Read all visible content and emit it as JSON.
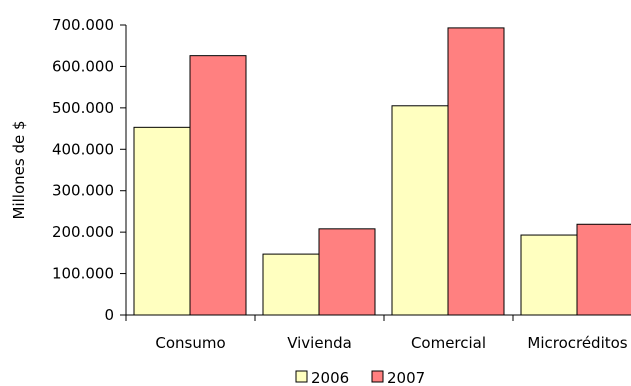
{
  "chart_data": {
    "type": "bar",
    "title": "",
    "xlabel": "",
    "ylabel": "Millones de $",
    "categories": [
      "Consumo",
      "Vivienda",
      "Comercial",
      "Microcréditos"
    ],
    "series": [
      {
        "name": "2006",
        "color": "#ffffc0",
        "values": [
          453000,
          147000,
          505000,
          193000
        ]
      },
      {
        "name": "2007",
        "color": "#ff8080",
        "values": [
          626000,
          208000,
          693000,
          219000
        ]
      }
    ],
    "ylim": [
      0,
      700000
    ],
    "yticks": [
      0,
      100000,
      200000,
      300000,
      400000,
      500000,
      600000,
      700000
    ],
    "ytick_labels": [
      "0",
      "100.000",
      "200.000",
      "300.000",
      "400.000",
      "500.000",
      "600.000",
      "700.000"
    ],
    "grid": false,
    "legend_position": "bottom"
  }
}
